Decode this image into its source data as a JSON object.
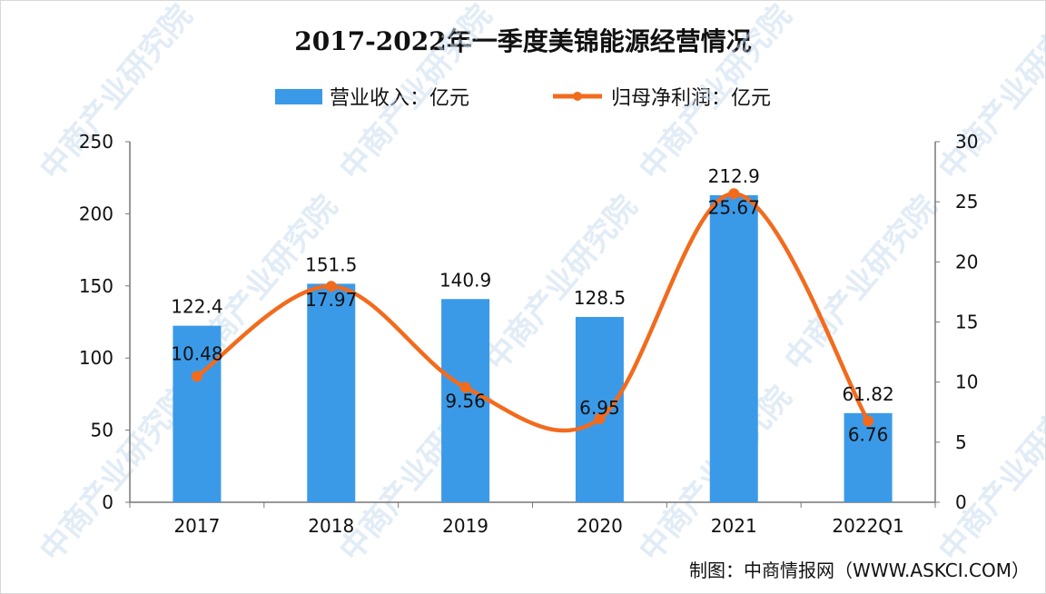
{
  "chart_data": {
    "type": "bar+line",
    "title": "2017-2022年一季度美锦能源经营情况",
    "categories": [
      "2017",
      "2018",
      "2019",
      "2020",
      "2021",
      "2022Q1"
    ],
    "series": [
      {
        "name": "营业收入：亿元",
        "type": "bar",
        "axis": "left",
        "color": "#3b9ae8",
        "values": [
          122.4,
          151.5,
          140.9,
          128.5,
          212.9,
          61.82
        ]
      },
      {
        "name": "归母净利润：亿元",
        "type": "line",
        "smooth": true,
        "axis": "right",
        "color": "#f26b1d",
        "values": [
          10.48,
          17.97,
          9.56,
          6.95,
          25.67,
          6.76
        ]
      }
    ],
    "y_left": {
      "min": 0,
      "max": 250,
      "ticks": [
        0,
        50,
        100,
        150,
        200,
        250
      ]
    },
    "y_right": {
      "min": 0,
      "max": 30,
      "ticks": [
        0,
        5,
        10,
        15,
        20,
        25,
        30
      ]
    },
    "grid": false,
    "legend": "top"
  },
  "source": "制图：中商情报网（WWW.ASKCI.COM）",
  "watermark": "中商产业研究院"
}
